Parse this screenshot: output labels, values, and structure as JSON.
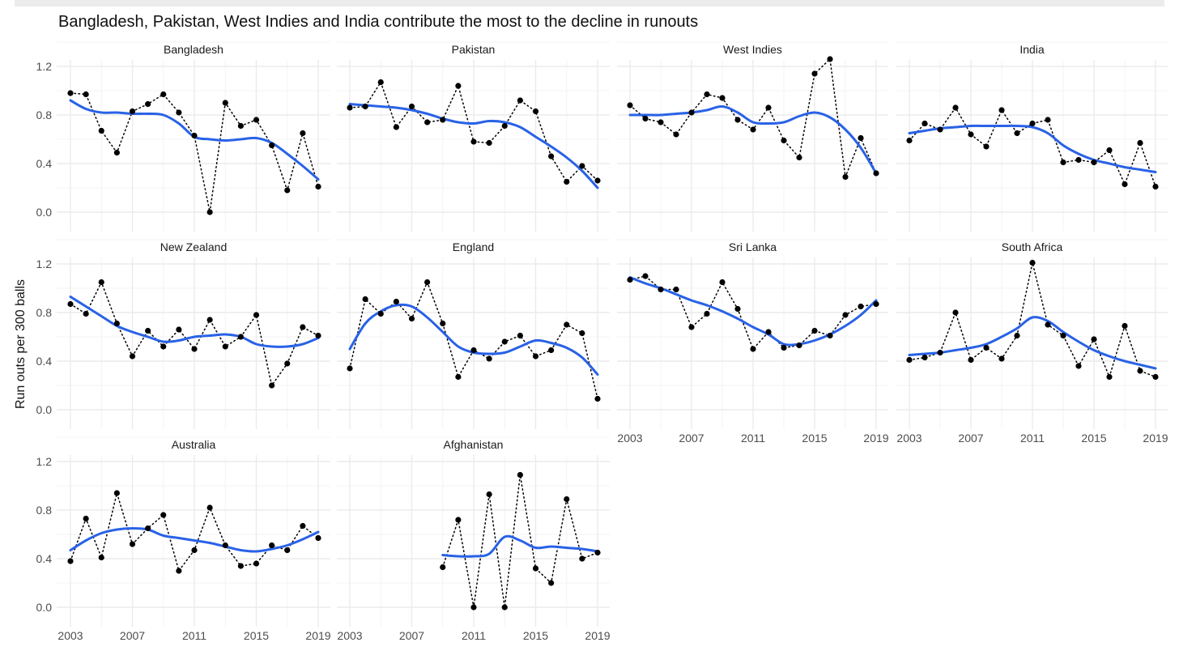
{
  "chart_data": {
    "type": "line",
    "title": "Bangladesh, Pakistan, West Indies and India contribute the most to the decline in runouts",
    "xlabel": "",
    "ylabel": "Run outs per 300 balls",
    "xlim": [
      2003,
      2019
    ],
    "ylim": [
      0.0,
      1.2
    ],
    "x_ticks": [
      "2003",
      "2007",
      "2011",
      "2015",
      "2019"
    ],
    "y_ticks": [
      "0.0",
      "0.4",
      "0.8",
      "1.2"
    ],
    "grid": true,
    "legend": "none",
    "colors": {
      "smooth": "#2962e6",
      "points": "#000000",
      "grid": "#ebebeb"
    },
    "panels": [
      {
        "name": "Bangladesh",
        "x": [
          2003,
          2004,
          2005,
          2006,
          2007,
          2008,
          2009,
          2010,
          2011,
          2012,
          2013,
          2014,
          2015,
          2016,
          2017,
          2018,
          2019
        ],
        "values": [
          0.98,
          0.97,
          0.67,
          0.49,
          0.83,
          0.89,
          0.97,
          0.82,
          0.63,
          0.0,
          0.9,
          0.71,
          0.76,
          0.55,
          0.18,
          0.65,
          0.21
        ],
        "trend": [
          0.92,
          0.85,
          0.82,
          0.82,
          0.81,
          0.81,
          0.8,
          0.73,
          0.62,
          0.6,
          0.59,
          0.6,
          0.61,
          0.57,
          0.48,
          0.38,
          0.27
        ]
      },
      {
        "name": "Pakistan",
        "x": [
          2003,
          2004,
          2005,
          2006,
          2007,
          2008,
          2009,
          2010,
          2011,
          2012,
          2013,
          2014,
          2015,
          2016,
          2017,
          2018,
          2019
        ],
        "values": [
          0.86,
          0.87,
          1.07,
          0.7,
          0.87,
          0.74,
          0.76,
          1.04,
          0.58,
          0.57,
          0.71,
          0.92,
          0.83,
          0.46,
          0.25,
          0.38,
          0.26
        ],
        "trend": [
          0.89,
          0.88,
          0.87,
          0.86,
          0.84,
          0.81,
          0.77,
          0.74,
          0.73,
          0.75,
          0.74,
          0.7,
          0.62,
          0.54,
          0.45,
          0.34,
          0.2
        ]
      },
      {
        "name": "West Indies",
        "x": [
          2003,
          2004,
          2005,
          2006,
          2007,
          2008,
          2009,
          2010,
          2011,
          2012,
          2013,
          2014,
          2015,
          2016,
          2017,
          2018,
          2019
        ],
        "values": [
          0.88,
          0.77,
          0.74,
          0.64,
          0.82,
          0.97,
          0.94,
          0.76,
          0.68,
          0.86,
          0.59,
          0.45,
          1.14,
          1.26,
          0.29,
          0.61,
          0.32
        ],
        "trend": [
          0.8,
          0.8,
          0.8,
          0.81,
          0.82,
          0.84,
          0.87,
          0.82,
          0.74,
          0.73,
          0.74,
          0.79,
          0.82,
          0.78,
          0.68,
          0.53,
          0.32
        ]
      },
      {
        "name": "India",
        "x": [
          2003,
          2004,
          2005,
          2006,
          2007,
          2008,
          2009,
          2010,
          2011,
          2012,
          2013,
          2014,
          2015,
          2016,
          2017,
          2018,
          2019
        ],
        "values": [
          0.59,
          0.73,
          0.68,
          0.86,
          0.64,
          0.54,
          0.84,
          0.65,
          0.73,
          0.76,
          0.41,
          0.43,
          0.41,
          0.51,
          0.23,
          0.57,
          0.21
        ],
        "trend": [
          0.65,
          0.67,
          0.69,
          0.7,
          0.71,
          0.71,
          0.71,
          0.71,
          0.7,
          0.65,
          0.55,
          0.48,
          0.43,
          0.4,
          0.37,
          0.35,
          0.33
        ]
      },
      {
        "name": "New Zealand",
        "x": [
          2003,
          2004,
          2005,
          2006,
          2007,
          2008,
          2009,
          2010,
          2011,
          2012,
          2013,
          2014,
          2015,
          2016,
          2017,
          2018,
          2019
        ],
        "values": [
          0.87,
          0.79,
          1.05,
          0.71,
          0.44,
          0.65,
          0.52,
          0.66,
          0.5,
          0.74,
          0.52,
          0.6,
          0.78,
          0.2,
          0.38,
          0.68,
          0.61
        ],
        "trend": [
          0.93,
          0.85,
          0.77,
          0.69,
          0.64,
          0.6,
          0.56,
          0.57,
          0.6,
          0.61,
          0.62,
          0.6,
          0.54,
          0.52,
          0.52,
          0.54,
          0.59
        ]
      },
      {
        "name": "England",
        "x": [
          2003,
          2004,
          2005,
          2006,
          2007,
          2008,
          2009,
          2010,
          2011,
          2012,
          2013,
          2014,
          2015,
          2016,
          2017,
          2018,
          2019
        ],
        "values": [
          0.34,
          0.91,
          0.79,
          0.89,
          0.75,
          1.05,
          0.71,
          0.27,
          0.49,
          0.42,
          0.56,
          0.61,
          0.44,
          0.49,
          0.7,
          0.63,
          0.09
        ],
        "trend": [
          0.5,
          0.71,
          0.81,
          0.86,
          0.85,
          0.76,
          0.64,
          0.52,
          0.47,
          0.46,
          0.47,
          0.52,
          0.57,
          0.55,
          0.51,
          0.43,
          0.29
        ]
      },
      {
        "name": "Sri Lanka",
        "x": [
          2003,
          2004,
          2005,
          2006,
          2007,
          2008,
          2009,
          2010,
          2011,
          2012,
          2013,
          2014,
          2015,
          2016,
          2017,
          2018,
          2019
        ],
        "values": [
          1.07,
          1.1,
          0.99,
          0.99,
          0.68,
          0.79,
          1.05,
          0.83,
          0.5,
          0.64,
          0.51,
          0.53,
          0.65,
          0.61,
          0.78,
          0.85,
          0.87
        ],
        "trend": [
          1.09,
          1.04,
          1.0,
          0.95,
          0.9,
          0.86,
          0.81,
          0.75,
          0.68,
          0.62,
          0.54,
          0.54,
          0.57,
          0.62,
          0.69,
          0.78,
          0.9
        ]
      },
      {
        "name": "South Africa",
        "x": [
          2003,
          2004,
          2005,
          2006,
          2007,
          2008,
          2009,
          2010,
          2011,
          2012,
          2013,
          2014,
          2015,
          2016,
          2017,
          2018,
          2019
        ],
        "values": [
          0.41,
          0.43,
          0.47,
          0.8,
          0.41,
          0.51,
          0.42,
          0.61,
          1.21,
          0.7,
          0.61,
          0.36,
          0.58,
          0.27,
          0.69,
          0.32,
          0.27
        ],
        "trend": [
          0.45,
          0.46,
          0.47,
          0.49,
          0.51,
          0.54,
          0.6,
          0.67,
          0.76,
          0.73,
          0.64,
          0.56,
          0.49,
          0.44,
          0.4,
          0.37,
          0.34
        ]
      },
      {
        "name": "Australia",
        "x": [
          2003,
          2004,
          2005,
          2006,
          2007,
          2008,
          2009,
          2010,
          2011,
          2012,
          2013,
          2014,
          2015,
          2016,
          2017,
          2018,
          2019
        ],
        "values": [
          0.38,
          0.73,
          0.41,
          0.94,
          0.52,
          0.65,
          0.76,
          0.3,
          0.47,
          0.82,
          0.51,
          0.34,
          0.36,
          0.51,
          0.47,
          0.67,
          0.57
        ],
        "trend": [
          0.47,
          0.55,
          0.61,
          0.64,
          0.65,
          0.64,
          0.59,
          0.57,
          0.55,
          0.53,
          0.5,
          0.47,
          0.46,
          0.48,
          0.51,
          0.56,
          0.62
        ]
      },
      {
        "name": "Afghanistan",
        "x": [
          2009,
          2010,
          2011,
          2012,
          2013,
          2014,
          2015,
          2016,
          2017,
          2018,
          2019
        ],
        "values": [
          0.33,
          0.72,
          0.0,
          0.93,
          0.0,
          1.09,
          0.32,
          0.2,
          0.89,
          0.4,
          0.45
        ],
        "trend": [
          0.43,
          0.42,
          0.42,
          0.44,
          0.58,
          0.55,
          0.49,
          0.5,
          0.49,
          0.48,
          0.46
        ]
      }
    ]
  }
}
